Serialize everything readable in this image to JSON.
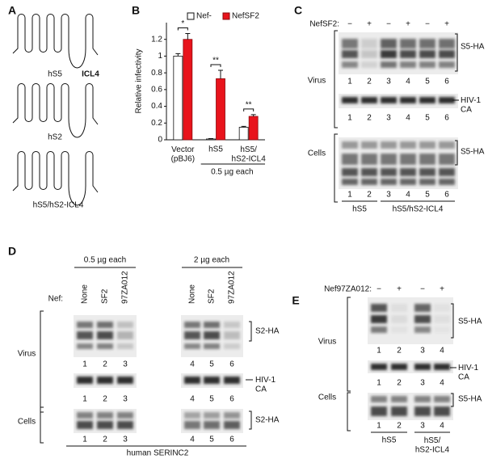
{
  "panel_a": {
    "label": "A",
    "constructs": [
      {
        "name": "hS5",
        "loop_label": "ICL4"
      },
      {
        "name": "hS2"
      },
      {
        "name": "hS5/hS2-ICL4"
      }
    ]
  },
  "chart_data": {
    "panel_label": "B",
    "type": "bar",
    "ylabel": "Relative infectivity",
    "categories": [
      "Vector\n(pBJ6)",
      "hS5",
      "hS5/\nhS2-ICL4"
    ],
    "series": [
      {
        "name": "Nef-",
        "color": "#ffffff",
        "values": [
          1.0,
          0.01,
          0.15
        ],
        "errors": [
          0.03,
          0.005,
          0.01
        ]
      },
      {
        "name": "NefSF2",
        "color": "#e8141c",
        "values": [
          1.2,
          0.73,
          0.28
        ],
        "errors": [
          0.07,
          0.1,
          0.02
        ]
      }
    ],
    "significance": [
      "*",
      "**",
      "**"
    ],
    "group_label": "0.5 µg each",
    "ylim": [
      0,
      1.4
    ],
    "yticks": [
      0,
      0.2,
      0.4,
      0.6,
      0.8,
      1,
      1.2
    ]
  },
  "panel_c": {
    "label": "C",
    "nef_label": "NefSF2:",
    "nef": [
      "−",
      "+",
      "−",
      "+",
      "−",
      "+"
    ],
    "virus_label": "Virus",
    "virus_band": "S5-HA",
    "virus_lanes": [
      1,
      2,
      3,
      4,
      5,
      6
    ],
    "ca_band": "HIV-1\nCA",
    "ca_lanes": [
      1,
      2,
      3,
      4,
      5,
      6
    ],
    "cells_label": "Cells",
    "cells_band": "S5-HA",
    "cells_lanes": [
      1,
      2,
      3,
      4,
      5,
      6
    ],
    "groups": [
      "hS5",
      "hS5/hS2-ICL4"
    ]
  },
  "panel_d": {
    "label": "D",
    "amounts": [
      "0.5 µg each",
      "2 µg each"
    ],
    "nef_label": "Nef:",
    "nef": [
      "None",
      "SF2",
      "97ZA012",
      "None",
      "SF2",
      "97ZA012"
    ],
    "virus_label": "Virus",
    "virus_band": "S2-HA",
    "virus_lanes": [
      1,
      2,
      3,
      4,
      5,
      6
    ],
    "ca_band": "HIV-1\nCA",
    "ca_lanes": [
      1,
      2,
      3,
      4,
      5,
      6
    ],
    "cells_label": "Cells",
    "cells_band": "S2-HA",
    "cells_lanes": [
      1,
      2,
      3,
      4,
      5,
      6
    ],
    "footer": "human SERINC2"
  },
  "panel_e": {
    "label": "E",
    "nef_label": "Nef97ZA012:",
    "nef": [
      "−",
      "+",
      "−",
      "+"
    ],
    "virus_label": "Virus",
    "virus_band": "S5-HA",
    "virus_lanes": [
      1,
      2,
      3,
      4
    ],
    "ca_band": "HIV-1\nCA",
    "ca_lanes": [
      1,
      2,
      3,
      4
    ],
    "cells_label": "Cells",
    "cells_band": "S5-HA",
    "cells_lanes": [
      1,
      2,
      3,
      4
    ],
    "groups": [
      "hS5",
      "hS5/\nhS2-ICL4"
    ]
  }
}
